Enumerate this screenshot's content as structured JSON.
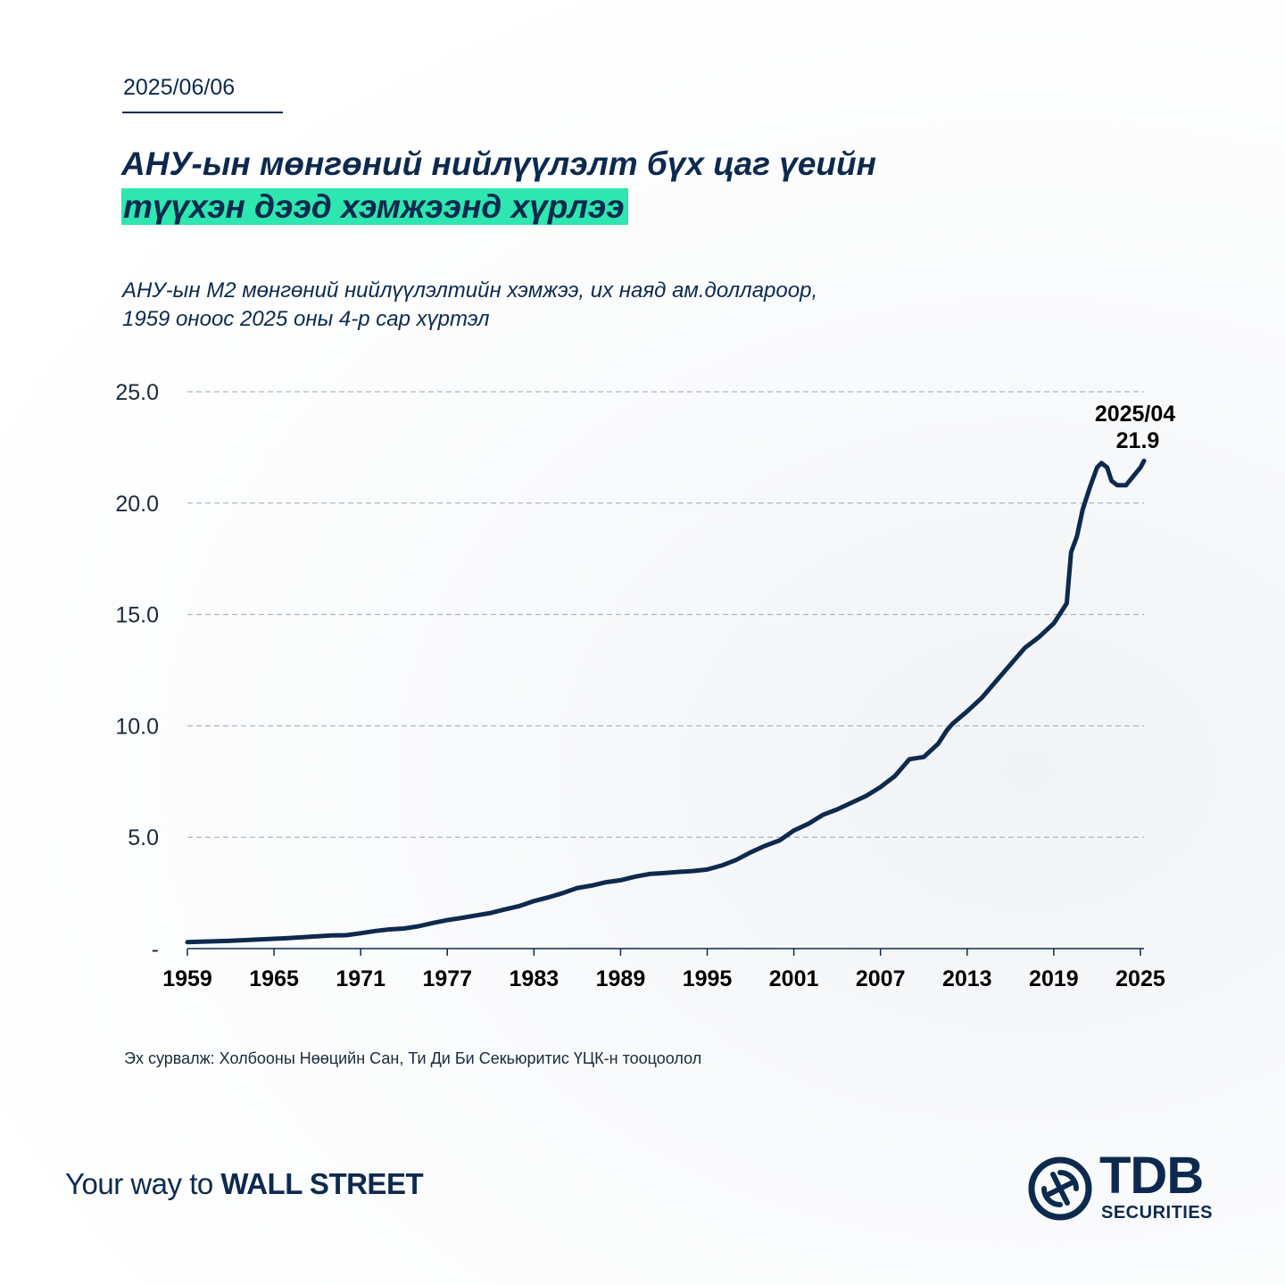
{
  "header": {
    "date": "2025/06/06",
    "title_line1": "АНУ-ын мөнгөний нийлүүлэлт бүх цаг үеийн",
    "title_line2_highlight": "түүхэн дээд хэмжээнд хүрлээ",
    "subtitle_line1": "АНУ-ын М2 мөнгөний нийлүүлэлтийн хэмжээ, их наяд ам.доллароор,",
    "subtitle_line2": "1959 оноос 2025 оны 4-р сар хүртэл",
    "highlight_color": "#2ee6b0"
  },
  "chart_data": {
    "type": "line",
    "series": [
      {
        "color": "#0d2a4e",
        "x": [
          1959,
          1960,
          1961,
          1962,
          1963,
          1964,
          1965,
          1966,
          1967,
          1968,
          1969,
          1970,
          1971,
          1972,
          1973,
          1974,
          1975,
          1976,
          1977,
          1978,
          1979,
          1980,
          1981,
          1982,
          1983,
          1984,
          1985,
          1986,
          1987,
          1988,
          1989,
          1990,
          1991,
          1992,
          1993,
          1994,
          1995,
          1996,
          1997,
          1998,
          1999,
          2000,
          2001,
          2002,
          2003,
          2004,
          2005,
          2006,
          2007,
          2008,
          2008.8,
          2009,
          2010,
          2011,
          2011.6,
          2012,
          2013,
          2014,
          2015,
          2016,
          2017,
          2018,
          2019,
          2019.9,
          2020.2,
          2020.6,
          2021,
          2021.5,
          2022,
          2022.3,
          2022.7,
          2023,
          2023.4,
          2024,
          2024.5,
          2025,
          2025.25
        ],
        "values": [
          0.29,
          0.31,
          0.33,
          0.35,
          0.38,
          0.41,
          0.44,
          0.47,
          0.51,
          0.55,
          0.59,
          0.6,
          0.69,
          0.79,
          0.86,
          0.9,
          1.0,
          1.15,
          1.28,
          1.38,
          1.49,
          1.6,
          1.76,
          1.91,
          2.13,
          2.3,
          2.49,
          2.72,
          2.83,
          2.98,
          3.07,
          3.23,
          3.35,
          3.39,
          3.44,
          3.48,
          3.55,
          3.73,
          3.98,
          4.32,
          4.61,
          4.85,
          5.3,
          5.6,
          6.0,
          6.25,
          6.55,
          6.85,
          7.25,
          7.75,
          8.35,
          8.5,
          8.6,
          9.2,
          9.8,
          10.1,
          10.65,
          11.25,
          12.0,
          12.75,
          13.5,
          14.0,
          14.6,
          15.5,
          17.8,
          18.5,
          19.7,
          20.7,
          21.6,
          21.8,
          21.6,
          21.0,
          20.8,
          20.8,
          21.2,
          21.6,
          21.9
        ]
      }
    ],
    "ylim": [
      0,
      25
    ],
    "yticks": [
      "25.0",
      "20.0",
      "15.0",
      "10.0",
      "5.0",
      "-"
    ],
    "ytick_values": [
      25,
      20,
      15,
      10,
      5,
      0
    ],
    "xlim": [
      1959,
      2025.25
    ],
    "xticks": [
      1959,
      1965,
      1971,
      1977,
      1983,
      1989,
      1995,
      2001,
      2007,
      2013,
      2019,
      2025
    ],
    "grid": "horizontal dashed",
    "annotation": {
      "line1": "2025/04",
      "line2": "21.9"
    }
  },
  "footer": {
    "source": "Эх сурвалж: Холбооны Нөөцийн Сан, Ти Ди Би Секьюритис ҮЦК-н тооцоолол",
    "slogan_regular": "Your way to ",
    "slogan_bold": "WALL STREET",
    "logo_main": "TDB",
    "logo_sub": "SECURITIES"
  }
}
